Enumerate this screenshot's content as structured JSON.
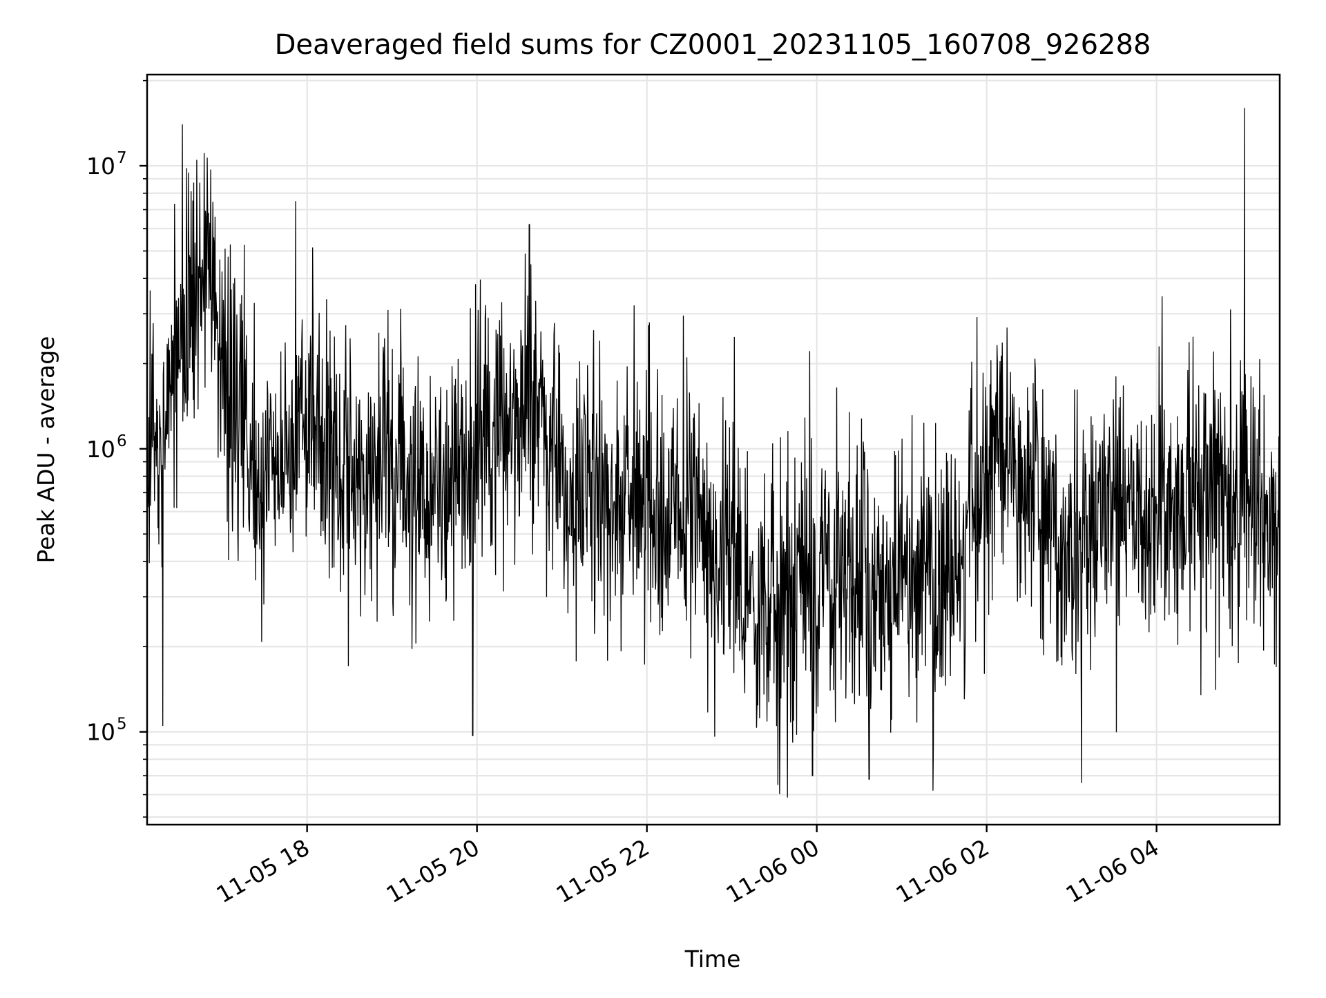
{
  "chart_data": {
    "type": "line",
    "title": "Deaveraged field sums for CZ0001_20231105_160708_926288",
    "xlabel": "Time",
    "ylabel": "Peak ADU - average",
    "yscale": "log",
    "xlim": [
      "2023-11-05 16:07",
      "2023-11-06 05:27"
    ],
    "ylim": [
      47000,
      21000000
    ],
    "grid": true,
    "line_color": "#000000",
    "grid_color": "#e6e6e6",
    "x_ticks": [
      {
        "t": "2023-11-05 18:00",
        "label": "11-05 18"
      },
      {
        "t": "2023-11-05 20:00",
        "label": "11-05 20"
      },
      {
        "t": "2023-11-05 22:00",
        "label": "11-05 22"
      },
      {
        "t": "2023-11-06 00:00",
        "label": "11-06 00"
      },
      {
        "t": "2023-11-06 02:00",
        "label": "11-06 02"
      },
      {
        "t": "2023-11-06 04:00",
        "label": "11-06 04"
      }
    ],
    "y_ticks": [
      {
        "value": 100000,
        "base": "10",
        "exp": "5"
      },
      {
        "value": 1000000,
        "base": "10",
        "exp": "6"
      },
      {
        "value": 10000000,
        "base": "10",
        "exp": "7"
      }
    ],
    "series": [
      {
        "name": "",
        "approx": true,
        "points": [
          [
            "2023-11-05 16:07",
            900000
          ],
          [
            "2023-11-05 16:17",
            1200000
          ],
          [
            "2023-11-05 16:27",
            2000000
          ],
          [
            "2023-11-05 16:37",
            3000000
          ],
          [
            "2023-11-05 16:47",
            4000000
          ],
          [
            "2023-11-05 16:57",
            3000000
          ],
          [
            "2023-11-05 17:07",
            1400000
          ],
          [
            "2023-11-05 17:17",
            900000
          ],
          [
            "2023-11-05 17:27",
            700000
          ],
          [
            "2023-11-05 17:37",
            800000
          ],
          [
            "2023-11-05 17:47",
            1000000
          ],
          [
            "2023-11-05 17:57",
            1300000
          ],
          [
            "2023-11-05 18:07",
            1400000
          ],
          [
            "2023-11-05 18:17",
            1100000
          ],
          [
            "2023-11-05 18:27",
            900000
          ],
          [
            "2023-11-05 18:37",
            800000
          ],
          [
            "2023-11-05 18:47",
            800000
          ],
          [
            "2023-11-05 18:57",
            900000
          ],
          [
            "2023-11-05 19:07",
            900000
          ],
          [
            "2023-11-05 19:17",
            800000
          ],
          [
            "2023-11-05 19:27",
            700000
          ],
          [
            "2023-11-05 19:37",
            800000
          ],
          [
            "2023-11-05 19:47",
            900000
          ],
          [
            "2023-11-05 19:57",
            1000000
          ],
          [
            "2023-11-05 20:07",
            1000000
          ],
          [
            "2023-11-05 20:17",
            1100000
          ],
          [
            "2023-11-05 20:27",
            1300000
          ],
          [
            "2023-11-05 20:37",
            1500000
          ],
          [
            "2023-11-05 20:47",
            1200000
          ],
          [
            "2023-11-05 20:57",
            900000
          ],
          [
            "2023-11-05 21:07",
            700000
          ],
          [
            "2023-11-05 21:17",
            700000
          ],
          [
            "2023-11-05 21:27",
            600000
          ],
          [
            "2023-11-05 21:37",
            700000
          ],
          [
            "2023-11-05 21:47",
            800000
          ],
          [
            "2023-11-05 21:57",
            700000
          ],
          [
            "2023-11-05 22:07",
            600000
          ],
          [
            "2023-11-05 22:17",
            550000
          ],
          [
            "2023-11-05 22:27",
            550000
          ],
          [
            "2023-11-05 22:37",
            600000
          ],
          [
            "2023-11-05 22:47",
            500000
          ],
          [
            "2023-11-05 22:57",
            450000
          ],
          [
            "2023-11-05 23:07",
            350000
          ],
          [
            "2023-11-05 23:17",
            260000
          ],
          [
            "2023-11-05 23:27",
            260000
          ],
          [
            "2023-11-05 23:37",
            280000
          ],
          [
            "2023-11-05 23:47",
            300000
          ],
          [
            "2023-11-05 23:57",
            320000
          ],
          [
            "2023-11-06 00:07",
            330000
          ],
          [
            "2023-11-06 00:17",
            340000
          ],
          [
            "2023-11-06 00:27",
            340000
          ],
          [
            "2023-11-06 00:37",
            340000
          ],
          [
            "2023-11-06 00:47",
            330000
          ],
          [
            "2023-11-06 00:57",
            330000
          ],
          [
            "2023-11-06 01:07",
            330000
          ],
          [
            "2023-11-06 01:17",
            330000
          ],
          [
            "2023-11-06 01:27",
            350000
          ],
          [
            "2023-11-06 01:37",
            400000
          ],
          [
            "2023-11-06 01:47",
            500000
          ],
          [
            "2023-11-06 01:57",
            700000
          ],
          [
            "2023-11-06 02:07",
            900000
          ],
          [
            "2023-11-06 02:17",
            900000
          ],
          [
            "2023-11-06 02:27",
            800000
          ],
          [
            "2023-11-06 02:37",
            650000
          ],
          [
            "2023-11-06 02:47",
            500000
          ],
          [
            "2023-11-06 02:57",
            450000
          ],
          [
            "2023-11-06 03:07",
            450000
          ],
          [
            "2023-11-06 03:17",
            550000
          ],
          [
            "2023-11-06 03:27",
            700000
          ],
          [
            "2023-11-06 03:37",
            700000
          ],
          [
            "2023-11-06 03:47",
            600000
          ],
          [
            "2023-11-06 03:57",
            600000
          ],
          [
            "2023-11-06 04:07",
            650000
          ],
          [
            "2023-11-06 04:17",
            700000
          ],
          [
            "2023-11-06 04:27",
            700000
          ],
          [
            "2023-11-06 04:37",
            650000
          ],
          [
            "2023-11-06 04:47",
            600000
          ],
          [
            "2023-11-06 04:57",
            650000
          ],
          [
            "2023-11-06 05:07",
            600000
          ],
          [
            "2023-11-06 05:17",
            600000
          ],
          [
            "2023-11-06 05:27",
            550000
          ]
        ]
      }
    ],
    "spikes": [
      {
        "t": "2023-11-05 16:32",
        "value": 14000000
      },
      {
        "t": "2023-11-05 16:42",
        "value": 10500000
      },
      {
        "t": "2023-11-05 16:52",
        "value": 9700000
      },
      {
        "t": "2023-11-05 17:52",
        "value": 7500000
      },
      {
        "t": "2023-11-05 20:37",
        "value": 6200000
      },
      {
        "t": "2023-11-06 05:02",
        "value": 16000000
      },
      {
        "t": "2023-11-05 16:18",
        "value": 105000
      },
      {
        "t": "2023-11-05 19:57",
        "value": 97000
      },
      {
        "t": "2023-11-05 23:57",
        "value": 70000
      },
      {
        "t": "2023-11-06 00:37",
        "value": 68000
      },
      {
        "t": "2023-11-06 01:22",
        "value": 62000
      },
      {
        "t": "2023-11-06 03:07",
        "value": 66000
      }
    ]
  }
}
